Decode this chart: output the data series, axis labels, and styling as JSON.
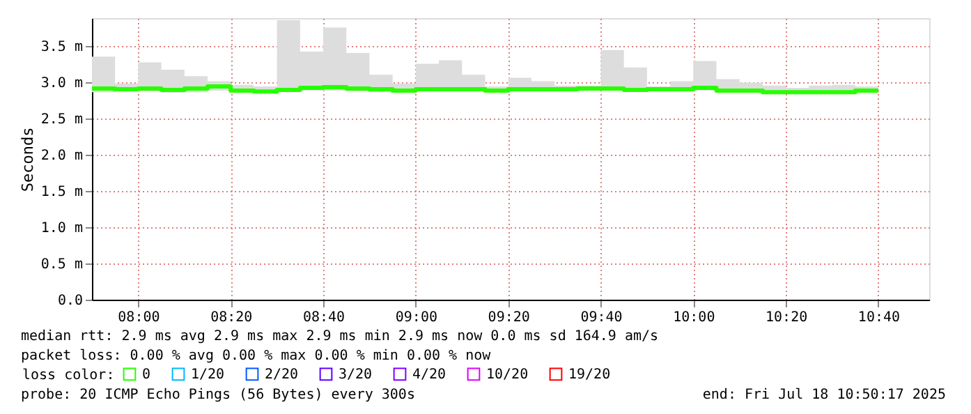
{
  "chart_data": {
    "type": "step",
    "ylabel": "Seconds",
    "x": [
      "2025-07-18T07:50",
      "2025-07-18T07:55",
      "2025-07-18T08:00",
      "2025-07-18T08:05",
      "2025-07-18T08:10",
      "2025-07-18T08:15",
      "2025-07-18T08:20",
      "2025-07-18T08:25",
      "2025-07-18T08:30",
      "2025-07-18T08:35",
      "2025-07-18T08:40",
      "2025-07-18T08:45",
      "2025-07-18T08:50",
      "2025-07-18T08:55",
      "2025-07-18T09:00",
      "2025-07-18T09:05",
      "2025-07-18T09:10",
      "2025-07-18T09:15",
      "2025-07-18T09:20",
      "2025-07-18T09:25",
      "2025-07-18T09:30",
      "2025-07-18T09:35",
      "2025-07-18T09:40",
      "2025-07-18T09:45",
      "2025-07-18T09:50",
      "2025-07-18T09:55",
      "2025-07-18T10:00",
      "2025-07-18T10:05",
      "2025-07-18T10:10",
      "2025-07-18T10:15",
      "2025-07-18T10:20",
      "2025-07-18T10:25",
      "2025-07-18T10:30",
      "2025-07-18T10:35",
      "2025-07-18T10:40"
    ],
    "series": [
      {
        "name": "0",
        "color": "#26ff00",
        "values": [
          2.91,
          2.9,
          2.91,
          2.89,
          2.91,
          2.94,
          2.88,
          2.87,
          2.89,
          2.92,
          2.93,
          2.91,
          2.9,
          2.88,
          2.9,
          2.9,
          2.9,
          2.88,
          2.9,
          2.9,
          2.9,
          2.91,
          2.91,
          2.89,
          2.9,
          2.9,
          2.92,
          2.88,
          2.88,
          2.86,
          2.86,
          2.86,
          2.86,
          2.88,
          2.88
        ],
        "lower": [
          2.86,
          2.87,
          2.87,
          2.85,
          2.86,
          2.88,
          2.86,
          2.85,
          2.86,
          2.88,
          2.88,
          2.87,
          2.86,
          2.86,
          2.87,
          2.87,
          2.87,
          2.86,
          2.87,
          2.87,
          2.87,
          2.88,
          2.88,
          2.87,
          2.87,
          2.87,
          2.88,
          2.86,
          2.86,
          2.85,
          2.85,
          2.85,
          2.85,
          2.86,
          2.86
        ],
        "upper": [
          3.35,
          2.98,
          3.27,
          3.17,
          3.08,
          3.01,
          2.96,
          2.94,
          3.85,
          3.42,
          3.75,
          3.4,
          3.1,
          2.98,
          3.25,
          3.3,
          3.1,
          2.94,
          3.06,
          3.01,
          2.95,
          2.95,
          3.44,
          3.2,
          2.94,
          3.01,
          3.29,
          3.04,
          2.99,
          2.95,
          2.92,
          2.95,
          2.96,
          2.94,
          2.93
        ]
      },
      {
        "name": "1/20",
        "color": "#00b8ff",
        "values": [
          null,
          null,
          null,
          null,
          null,
          null,
          null,
          null,
          null,
          null,
          null,
          null,
          null,
          null,
          null,
          null,
          null,
          null,
          null,
          null,
          null,
          null,
          null,
          null,
          null,
          null,
          null,
          null,
          null,
          null,
          null,
          null,
          null,
          null,
          null
        ]
      },
      {
        "name": "2/20",
        "color": "#0059ff",
        "values": [
          null,
          null,
          null,
          null,
          null,
          null,
          null,
          null,
          null,
          null,
          null,
          null,
          null,
          null,
          null,
          null,
          null,
          null,
          null,
          null,
          null,
          null,
          null,
          null,
          null,
          null,
          null,
          null,
          null,
          null,
          null,
          null,
          null,
          null,
          null
        ]
      },
      {
        "name": "3/20",
        "color": "#5e00ff",
        "values": [
          null,
          null,
          null,
          null,
          null,
          null,
          null,
          null,
          null,
          null,
          null,
          null,
          null,
          null,
          null,
          null,
          null,
          null,
          null,
          null,
          null,
          null,
          null,
          null,
          null,
          null,
          null,
          null,
          null,
          null,
          null,
          null,
          null,
          null,
          null
        ]
      },
      {
        "name": "4/20",
        "color": "#7e00ff",
        "values": [
          null,
          null,
          null,
          null,
          null,
          null,
          null,
          null,
          null,
          null,
          null,
          null,
          null,
          null,
          null,
          null,
          null,
          null,
          null,
          null,
          null,
          null,
          null,
          null,
          null,
          null,
          null,
          null,
          null,
          null,
          null,
          null,
          null,
          null,
          null
        ]
      },
      {
        "name": "10/20",
        "color": "#dd00ff",
        "values": [
          null,
          null,
          null,
          null,
          null,
          null,
          null,
          null,
          null,
          null,
          null,
          null,
          null,
          null,
          null,
          null,
          null,
          null,
          null,
          null,
          null,
          null,
          null,
          null,
          null,
          null,
          null,
          null,
          null,
          null,
          null,
          null,
          null,
          null,
          null
        ]
      },
      {
        "name": "19/20",
        "color": "#ff0000",
        "values": [
          null,
          null,
          null,
          null,
          null,
          null,
          null,
          null,
          null,
          null,
          null,
          null,
          null,
          null,
          null,
          null,
          null,
          null,
          null,
          null,
          null,
          null,
          null,
          null,
          null,
          null,
          null,
          null,
          null,
          null,
          null,
          null,
          null,
          null,
          null
        ]
      }
    ],
    "legend_title": "loss color:",
    "legend": "bottom",
    "grid": true,
    "xlim": [
      "2025-07-18T07:50",
      "2025-07-18T10:51"
    ],
    "xticks": [
      {
        "value": "2025-07-18T08:00",
        "label": "08:00"
      },
      {
        "value": "2025-07-18T08:20",
        "label": "08:20"
      },
      {
        "value": "2025-07-18T08:40",
        "label": "08:40"
      },
      {
        "value": "2025-07-18T09:00",
        "label": "09:00"
      },
      {
        "value": "2025-07-18T09:20",
        "label": "09:20"
      },
      {
        "value": "2025-07-18T09:40",
        "label": "09:40"
      },
      {
        "value": "2025-07-18T10:00",
        "label": "10:00"
      },
      {
        "value": "2025-07-18T10:20",
        "label": "10:20"
      },
      {
        "value": "2025-07-18T10:40",
        "label": "10:40"
      }
    ],
    "ylim": [
      0,
      3.88
    ],
    "yticks": [
      {
        "value": 0,
        "label": "0.0"
      },
      {
        "value": 0.5,
        "label": "0.5 m"
      },
      {
        "value": 1,
        "label": "1.0 m"
      },
      {
        "value": 1.5,
        "label": "1.5 m"
      },
      {
        "value": 2,
        "label": "2.0 m"
      },
      {
        "value": 2.5,
        "label": "2.5 m"
      },
      {
        "value": 3,
        "label": "3.0 m"
      },
      {
        "value": 3.5,
        "label": "3.5 m"
      }
    ],
    "annotations": [
      "median rtt:  2.9 ms avg  2.9 ms max  2.9 ms min  2.9 ms now  0.0 ms sd  164.9   am/s",
      "packet loss: 0.00 % avg  0.00 % max  0.00 % min  0.00 % now",
      "probe:       20 ICMP Echo Pings (56 Bytes) every 300s",
      "end: Fri Jul 18 10:50:17 2025"
    ]
  }
}
